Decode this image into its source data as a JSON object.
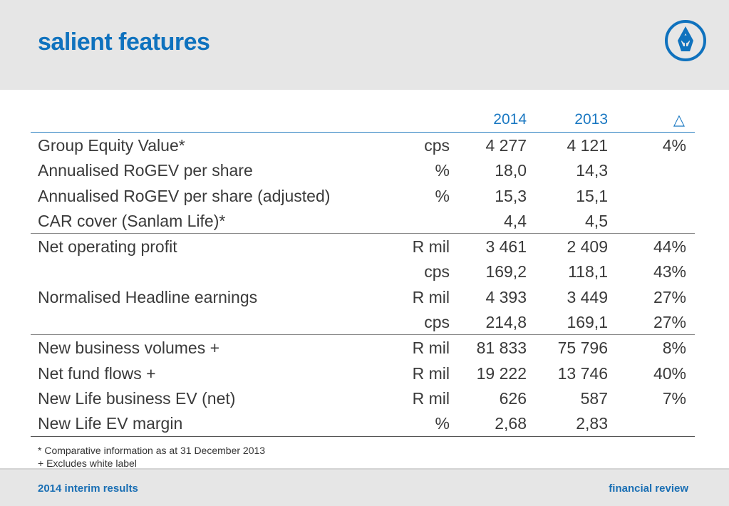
{
  "header": {
    "title": "salient features",
    "logo_icon": "sanlam-logo-icon",
    "brand_color": "#0f72be"
  },
  "table": {
    "columns": [
      "",
      "",
      "2014",
      "2013",
      "△"
    ],
    "rows": [
      {
        "label": "Group Equity Value*",
        "unit": "cps",
        "y2014": "4 277",
        "y2013": "4 121",
        "change": "4%"
      },
      {
        "label": "Annualised RoGEV per share",
        "unit": "%",
        "y2014": "18,0",
        "y2013": "14,3",
        "change": ""
      },
      {
        "label": "Annualised RoGEV per share (adjusted)",
        "unit": "%",
        "y2014": "15,3",
        "y2013": "15,1",
        "change": ""
      },
      {
        "label": "CAR cover (Sanlam Life)*",
        "unit": "",
        "y2014": "4,4",
        "y2013": "4,5",
        "change": ""
      },
      {
        "label": "Net operating profit",
        "unit": "R mil",
        "y2014": "3 461",
        "y2013": "2 409",
        "change": "44%"
      },
      {
        "label": "",
        "unit": "cps",
        "y2014": "169,2",
        "y2013": "118,1",
        "change": "43%"
      },
      {
        "label": "Normalised Headline earnings",
        "unit": "R mil",
        "y2014": "4 393",
        "y2013": "3 449",
        "change": "27%"
      },
      {
        "label": "",
        "unit": "cps",
        "y2014": "214,8",
        "y2013": "169,1",
        "change": "27%"
      },
      {
        "label": "New business volumes +",
        "unit": "R mil",
        "y2014": "81 833",
        "y2013": "75 796",
        "change": "8%"
      },
      {
        "label": "Net fund flows +",
        "unit": "R mil",
        "y2014": "19 222",
        "y2013": "13 746",
        "change": "40%"
      },
      {
        "label": "New Life business EV (net)",
        "unit": "R mil",
        "y2014": "626",
        "y2013": "587",
        "change": "7%"
      },
      {
        "label": "New Life EV margin",
        "unit": "%",
        "y2014": "2,68",
        "y2013": "2,83",
        "change": ""
      }
    ]
  },
  "notes": [
    "* Comparative information as at 31 December 2013",
    "+ Excludes white label"
  ],
  "footer": {
    "left": "2014 interim results",
    "right": "financial review"
  }
}
